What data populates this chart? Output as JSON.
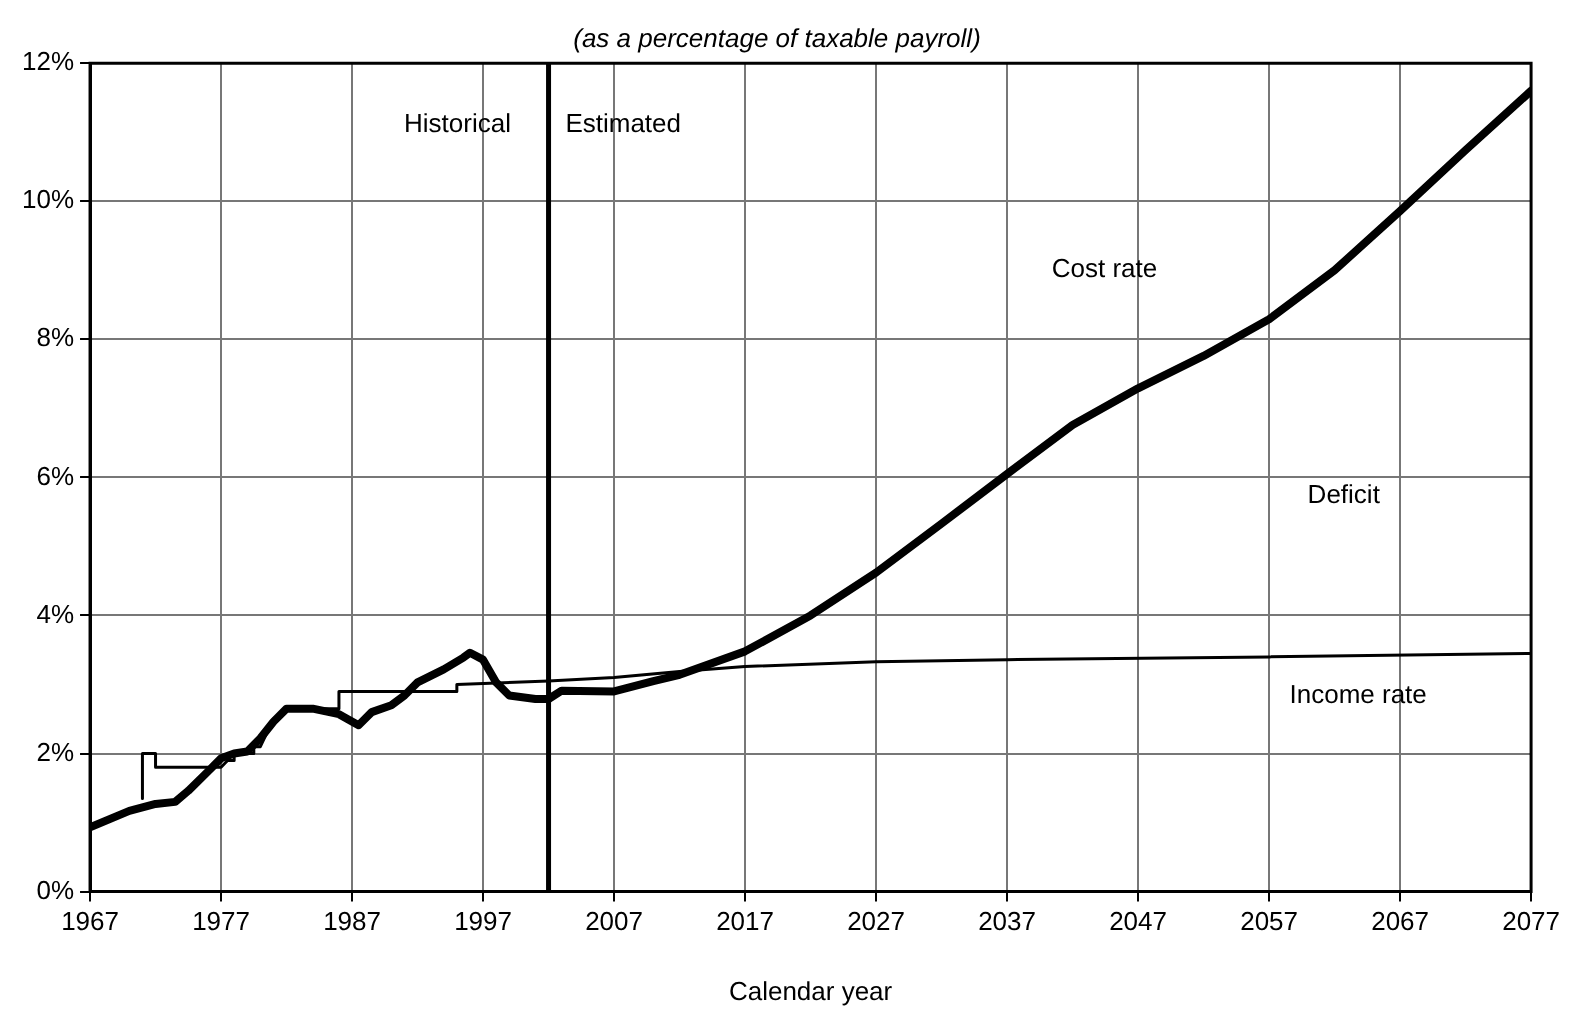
{
  "chart_data": {
    "type": "line",
    "subtitle": "(as a percentage of taxable payroll)",
    "xlabel": "Calendar year",
    "xlim": [
      1967,
      2077
    ],
    "xticks": [
      1967,
      1977,
      1987,
      1997,
      2007,
      2017,
      2027,
      2037,
      2047,
      2057,
      2067,
      2077
    ],
    "ylim": [
      0,
      12
    ],
    "yticks": [
      {
        "value": 0,
        "label": "0%"
      },
      {
        "value": 2,
        "label": "2%"
      },
      {
        "value": 4,
        "label": "4%"
      },
      {
        "value": 6,
        "label": "6%"
      },
      {
        "value": 8,
        "label": "8%"
      },
      {
        "value": 10,
        "label": "10%"
      },
      {
        "value": 12,
        "label": "12%"
      }
    ],
    "grid": true,
    "legend": false,
    "marker": "none",
    "series": [
      {
        "color": "#000000",
        "x": [
          1967,
          1970,
          1972,
          1973.5,
          1974.5,
          1976,
          1977,
          1978,
          1979,
          1980,
          1981,
          1982,
          1984,
          1986,
          1987.5,
          1988.5,
          1990,
          1991,
          1992,
          1994,
          1995.5,
          1996,
          1997,
          1998,
          1999,
          2001,
          2002,
          2003,
          2007,
          2010,
          2012,
          2017,
          2022,
          2027,
          2032,
          2037,
          2042,
          2047,
          2052,
          2057,
          2062,
          2067,
          2072,
          2077
        ],
        "values": [
          0.93,
          1.17,
          1.27,
          1.3,
          1.46,
          1.74,
          1.93,
          2.0,
          2.03,
          2.22,
          2.46,
          2.65,
          2.65,
          2.57,
          2.41,
          2.6,
          2.7,
          2.84,
          3.03,
          3.22,
          3.39,
          3.46,
          3.36,
          3.03,
          2.84,
          2.79,
          2.79,
          2.91,
          2.9,
          3.05,
          3.14,
          3.48,
          4.0,
          4.62,
          5.33,
          6.05,
          6.76,
          7.29,
          7.76,
          8.29,
          9.0,
          9.86,
          10.74,
          11.6
        ]
      },
      {
        "color": "#000000",
        "x": [
          1971,
          1971,
          1972,
          1972,
          1977,
          1977.5,
          1978,
          1978,
          1979.5,
          1979.5,
          1980,
          1981,
          1982,
          1986,
          1986,
          1995,
          1995,
          2002,
          2007,
          2012,
          2017,
          2027,
          2037,
          2057,
          2077
        ],
        "values": [
          1.35,
          2.0,
          2.0,
          1.8,
          1.8,
          1.9,
          1.9,
          2.0,
          2.0,
          2.1,
          2.1,
          2.5,
          2.65,
          2.65,
          2.9,
          2.9,
          3.0,
          3.05,
          3.1,
          3.19,
          3.26,
          3.33,
          3.36,
          3.4,
          3.45
        ]
      }
    ],
    "ref_lines": [
      {
        "axis": "x",
        "value": 2002,
        "color": "#000000"
      }
    ],
    "annotations": [
      "Historical",
      "Estimated",
      "Cost rate",
      "Deficit",
      "Income rate"
    ]
  }
}
